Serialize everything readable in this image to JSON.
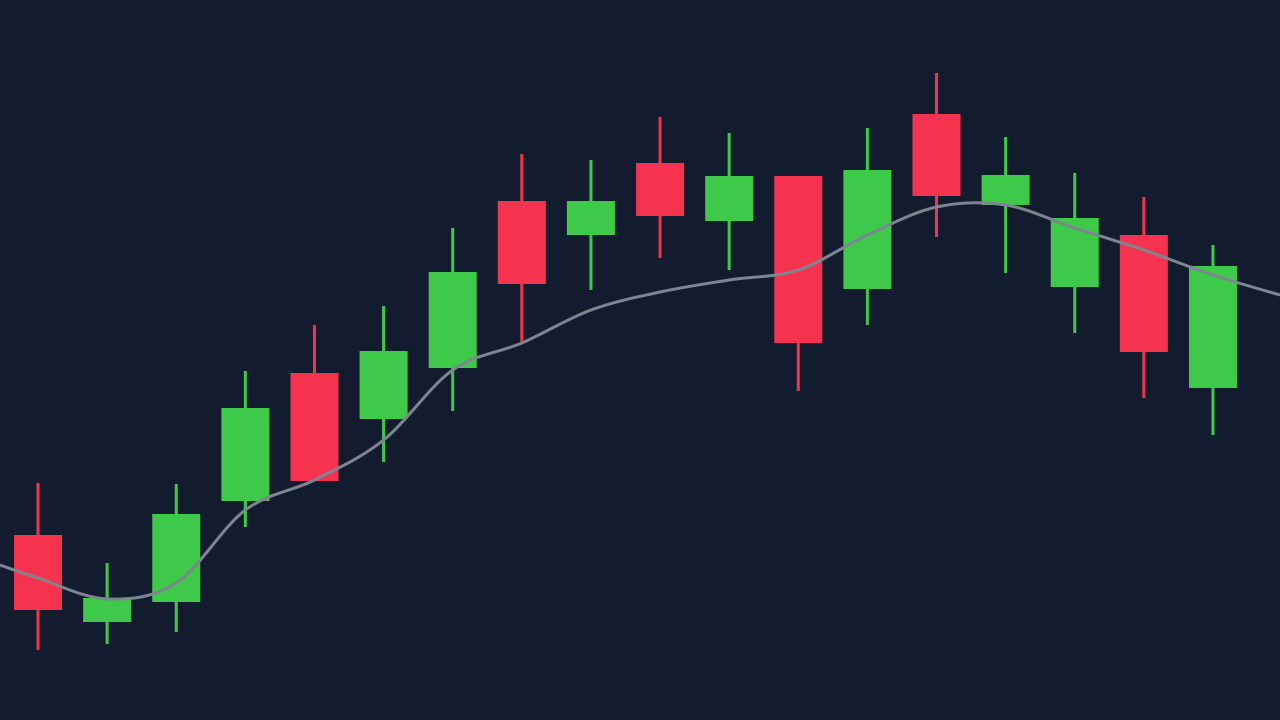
{
  "chart_data": {
    "type": "candlestick",
    "background": "#131c2e",
    "up_color": "#3ec94a",
    "down_color": "#f5334f",
    "x": [
      0,
      1,
      2,
      3,
      4,
      5,
      6,
      7,
      8,
      9,
      10,
      11,
      12,
      13,
      14,
      15,
      16,
      17
    ],
    "open": [
      185,
      98,
      118,
      219,
      347,
      301,
      352,
      519,
      485,
      557,
      499,
      544,
      431,
      606,
      515,
      433,
      485,
      332
    ],
    "high": [
      237,
      157,
      236,
      349,
      395,
      414,
      492,
      566,
      560,
      603,
      587,
      544,
      592,
      647,
      583,
      547,
      523,
      475
    ],
    "low": [
      70,
      76,
      88,
      193,
      239,
      258,
      309,
      377,
      430,
      462,
      450,
      329,
      395,
      483,
      447,
      387,
      322,
      285
    ],
    "close": [
      110,
      122,
      206,
      312,
      239,
      369,
      448,
      436,
      519,
      504,
      544,
      377,
      550,
      524,
      545,
      502,
      368,
      454
    ],
    "overlay": {
      "type": "line",
      "color": "#7d8590",
      "x": [
        -0.55,
        0,
        1,
        2,
        3,
        4,
        5,
        6,
        7,
        8,
        9,
        10,
        11,
        12,
        13,
        14,
        15,
        16,
        17,
        17.97
      ],
      "values": [
        155,
        142,
        121,
        137,
        210,
        240,
        280,
        350,
        377,
        410,
        428,
        440,
        450,
        485,
        513,
        515,
        492,
        470,
        445,
        425
      ]
    },
    "xlim": [
      -0.55,
      17.97
    ],
    "ylim": [
      0,
      720
    ]
  }
}
